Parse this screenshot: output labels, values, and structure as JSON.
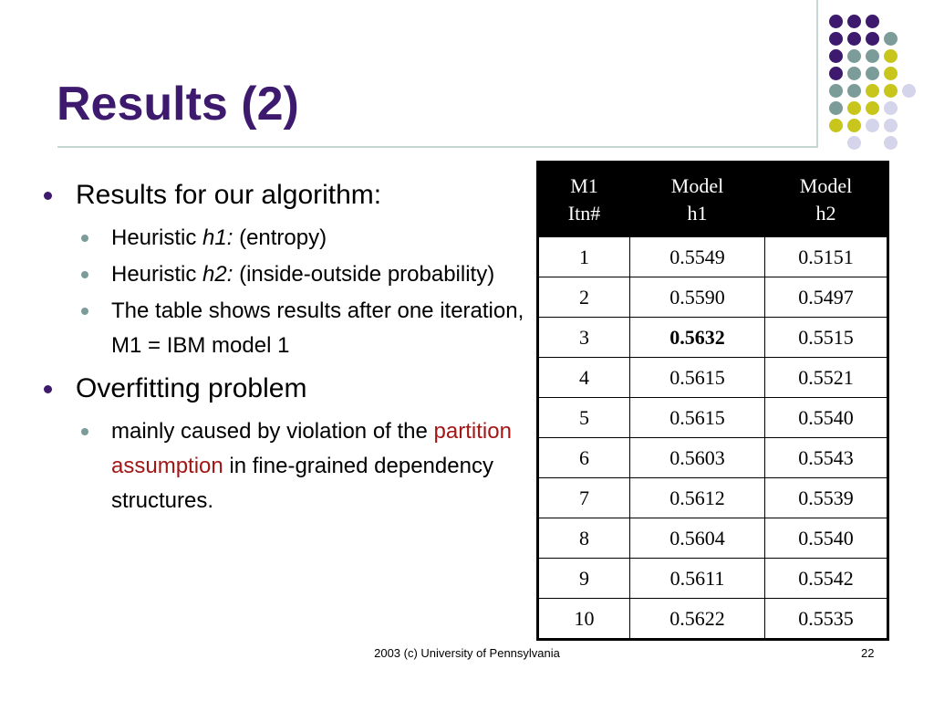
{
  "slide": {
    "title": "Results (2)",
    "footer_text": "2003 (c) University of Pennsylvania",
    "page_number": "22"
  },
  "bullets": {
    "b1": "Results for our algorithm:",
    "h1_prefix": "Heuristic ",
    "h1_term": "h1:",
    "h1_desc": " (entropy)",
    "h2_prefix": "Heuristic ",
    "h2_term": "h2:",
    "h2_desc": " (inside-outside probability)",
    "table_note": "The table shows results after one iteration, M1 = IBM model 1",
    "b2": "Overfitting problem",
    "cause_prefix": "mainly caused by violation of the ",
    "cause_highlight": "partition assumption",
    "cause_suffix": " in fine-grained dependency structures."
  },
  "table": {
    "headers": [
      "M1 Itn#",
      "Model h1",
      "Model h2"
    ],
    "rows": [
      [
        "1",
        "0.5549",
        "0.5151"
      ],
      [
        "2",
        "0.5590",
        "0.5497"
      ],
      [
        "3",
        "0.5632",
        "0.5515"
      ],
      [
        "4",
        "0.5615",
        "0.5521"
      ],
      [
        "5",
        "0.5615",
        "0.5540"
      ],
      [
        "6",
        "0.5603",
        "0.5543"
      ],
      [
        "7",
        "0.5612",
        "0.5539"
      ],
      [
        "8",
        "0.5604",
        "0.5540"
      ],
      [
        "9",
        "0.5611",
        "0.5542"
      ],
      [
        "10",
        "0.5622",
        "0.5535"
      ]
    ],
    "bold_cell": "0.5632"
  },
  "colors": {
    "title": "#3d1a6e",
    "dot_purple": "#3d1a6e",
    "dot_teal": "#7c9c99",
    "dot_yellow": "#c8c51c",
    "dot_lavender": "#d4d4ea",
    "highlight_red": "#a31616"
  }
}
